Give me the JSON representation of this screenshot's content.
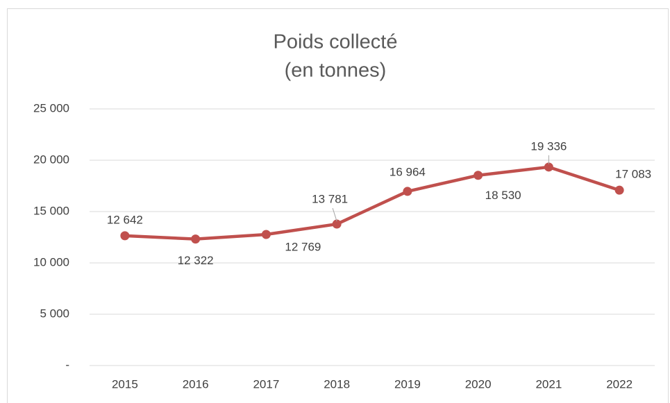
{
  "chart_data": {
    "type": "line",
    "title": "Poids collecté",
    "subtitle": "(en tonnes)",
    "categories": [
      "2015",
      "2016",
      "2017",
      "2018",
      "2019",
      "2020",
      "2021",
      "2022"
    ],
    "values": [
      12642,
      12322,
      12769,
      13781,
      16964,
      18530,
      19336,
      17083
    ],
    "value_labels": [
      "12 642",
      "12 322",
      "12 769",
      "13 781",
      "16 964",
      "18 530",
      "19 336",
      "17 083"
    ],
    "color": "#c0504d",
    "ylim": [
      0,
      25000
    ],
    "yticks": [
      {
        "value": 0,
        "label": "-"
      },
      {
        "value": 5000,
        "label": "5 000"
      },
      {
        "value": 10000,
        "label": "10 000"
      },
      {
        "value": 15000,
        "label": "15 000"
      },
      {
        "value": 20000,
        "label": "20 000"
      },
      {
        "value": 25000,
        "label": "25 000"
      }
    ],
    "grid": true
  }
}
